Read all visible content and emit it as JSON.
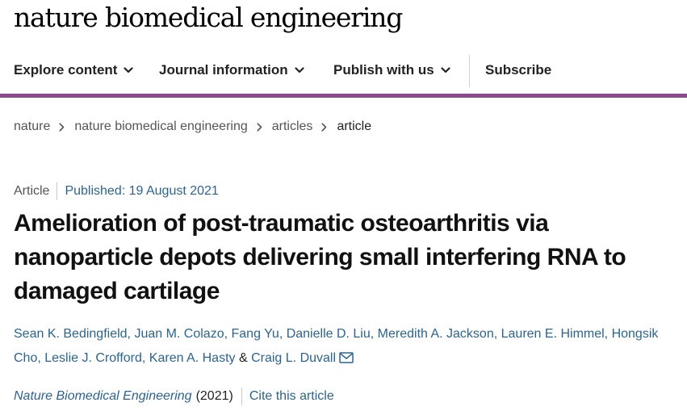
{
  "header": {
    "brand": "nature biomedical engineering"
  },
  "nav": {
    "items": [
      {
        "label": "Explore content",
        "has_dropdown": true
      },
      {
        "label": "Journal information",
        "has_dropdown": true
      },
      {
        "label": "Publish with us",
        "has_dropdown": true
      },
      {
        "label": "Subscribe",
        "has_dropdown": false
      }
    ],
    "accent_color": "#8a4a8c"
  },
  "breadcrumb": {
    "items": [
      "nature",
      "nature biomedical engineering",
      "articles",
      "article"
    ]
  },
  "article": {
    "type": "Article",
    "published": "Published: 19 August 2021",
    "title": "Amelioration of post-traumatic osteoarthritis via nanoparticle depots delivering small interfering RNA to damaged cartilage",
    "authors": [
      "Sean K. Bedingfield",
      "Juan M. Colazo",
      "Fang Yu",
      "Danielle D. Liu",
      "Meredith A. Jackson",
      "Lauren E. Himmel",
      "Hongsik Cho",
      "Leslie J. Crofford",
      "Karen A. Hasty",
      "Craig L. Duvall"
    ],
    "author_joiner": "&",
    "journal": "Nature Biomedical Engineering",
    "year": "(2021)",
    "cite_label": "Cite this article",
    "link_color": "#2a6496"
  }
}
